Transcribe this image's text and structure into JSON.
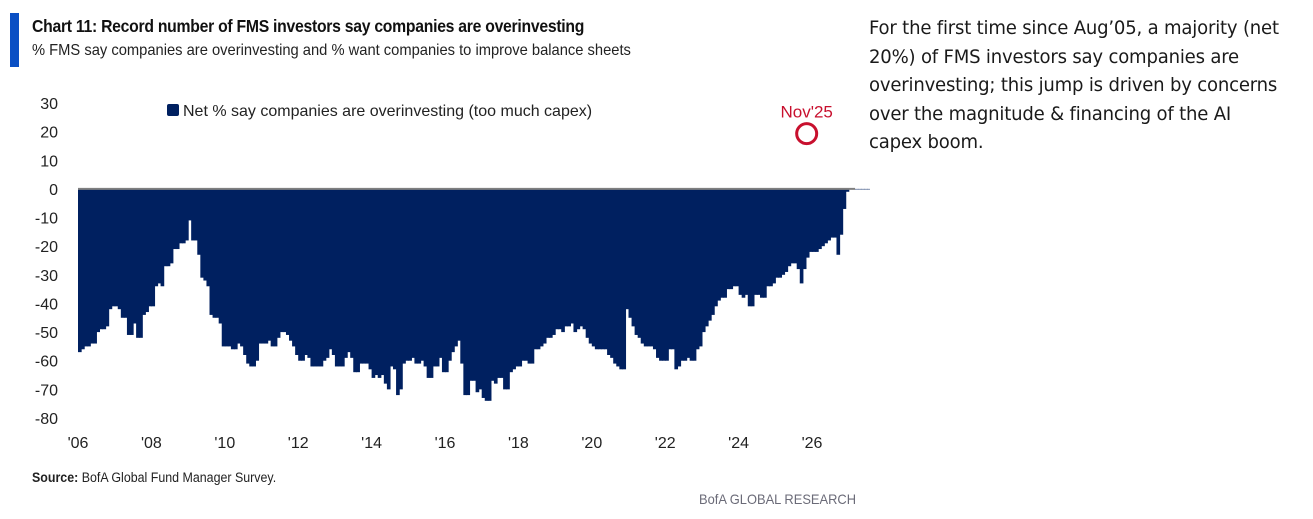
{
  "header": {
    "title": "Chart 11: Record number of FMS investors say companies are overinvesting",
    "subtitle": "% FMS say companies are overinvesting and % want companies to improve balance sheets"
  },
  "side_note": {
    "lines": [
      "For the first time since Aug’05, a majority (net",
      "20%) of FMS investors say companies are",
      "overinvesting; this jump is driven by concerns",
      "over the magnitude & financing of the AI",
      "capex boom."
    ]
  },
  "footer": {
    "source_label": "Source:",
    "source_text": "BofA Global Fund Manager Survey.",
    "brand": "BofA GLOBAL RESEARCH"
  },
  "colors": {
    "series": "#002060",
    "annotation": "#c8102e",
    "accent": "#0a4fc4",
    "zero_line": "#7f7f7f"
  },
  "chart_data": {
    "type": "bar",
    "title": "Chart 11: Record number of FMS investors say companies are overinvesting",
    "subtitle": "% FMS say companies are overinvesting and % want companies to improve balance sheets",
    "xlabel": "",
    "ylabel": "",
    "ylim": [
      -80,
      30
    ],
    "yticks": [
      30,
      20,
      10,
      0,
      -10,
      -20,
      -30,
      -40,
      -50,
      -60,
      -70,
      -80
    ],
    "ytick_labels": [
      "30",
      "20",
      "10",
      "0",
      "-10",
      "-20",
      "-30",
      "-40",
      "-50",
      "-60",
      "-70",
      "-80"
    ],
    "xlim": [
      "2006-01",
      "2026-12"
    ],
    "xtick_labels": [
      "'06",
      "'08",
      "'10",
      "'12",
      "'14",
      "'16",
      "'18",
      "'20",
      "'22",
      "'24",
      "'26"
    ],
    "xtick_years": [
      2006,
      2008,
      2010,
      2012,
      2014,
      2016,
      2018,
      2020,
      2022,
      2024,
      2026
    ],
    "grid": false,
    "legend": {
      "position": "top-center",
      "entries": [
        "Net % say companies are overinvesting (too much capex)"
      ]
    },
    "annotations": [
      {
        "text": "Nov'25",
        "x": "2025-11",
        "y": 20,
        "marker": "circle"
      }
    ],
    "series": [
      {
        "name": "Net % say companies are overinvesting (too much capex)",
        "start": "2006-01",
        "frequency": "monthly",
        "values": [
          -57,
          -56,
          -55,
          -55,
          -54,
          -54,
          -50,
          -49,
          -49,
          -48,
          -42,
          -41,
          -41,
          -42,
          -45,
          -45,
          -51,
          -51,
          -47,
          -52,
          -52,
          -44,
          -43,
          -41,
          -41,
          -34,
          -33,
          -34,
          -27,
          -27,
          -26,
          -21,
          -21,
          -19,
          -19,
          -18,
          -11,
          -18,
          -18,
          -23,
          -31,
          -32,
          -34,
          -44,
          -45,
          -45,
          -47,
          -55,
          -55,
          -55,
          -56,
          -56,
          -54,
          -55,
          -58,
          -61,
          -62,
          -62,
          -60,
          -54,
          -54,
          -54,
          -53,
          -55,
          -55,
          -52,
          -50,
          -50,
          -51,
          -53,
          -55,
          -58,
          -60,
          -60,
          -58,
          -59,
          -62,
          -62,
          -62,
          -62,
          -60,
          -59,
          -56,
          -58,
          -62,
          -62,
          -62,
          -59,
          -57,
          -59,
          -64,
          -64,
          -61,
          -61,
          -61,
          -63,
          -66,
          -65,
          -66,
          -65,
          -68,
          -70,
          -62,
          -63,
          -72,
          -70,
          -61,
          -60,
          -60,
          -59,
          -61,
          -61,
          -60,
          -62,
          -66,
          -66,
          -62,
          -62,
          -59,
          -64,
          -64,
          -60,
          -57,
          -55,
          -53,
          -61,
          -72,
          -72,
          -67,
          -67,
          -71,
          -70,
          -73,
          -74,
          -74,
          -67,
          -68,
          -66,
          -66,
          -70,
          -70,
          -64,
          -63,
          -62,
          -62,
          -60,
          -60,
          -61,
          -61,
          -56,
          -56,
          -55,
          -54,
          -52,
          -52,
          -51,
          -49,
          -49,
          -50,
          -48,
          -48,
          -47,
          -50,
          -49,
          -48,
          -49,
          -52,
          -54,
          -55,
          -56,
          -56,
          -56,
          -56,
          -58,
          -59,
          -61,
          -62,
          -63,
          -63,
          -42,
          -45,
          -48,
          -51,
          -52,
          -54,
          -55,
          -55,
          -55,
          -56,
          -59,
          -60,
          -60,
          -60,
          -56,
          -56,
          -63,
          -62,
          -60,
          -60,
          -59,
          -60,
          -60,
          -56,
          -55,
          -50,
          -48,
          -46,
          -44,
          -41,
          -39,
          -38,
          -38,
          -35,
          -35,
          -34,
          -34,
          -37,
          -38,
          -37,
          -41,
          -41,
          -37,
          -37,
          -38,
          -38,
          -34,
          -34,
          -33,
          -31,
          -31,
          -30,
          -29,
          -27,
          -26,
          -26,
          -28,
          -33,
          -28,
          -24,
          -22,
          -22,
          -22,
          -21,
          -20,
          -19,
          -18,
          -17,
          -17,
          -23,
          -16,
          -7,
          -1,
          0,
          0,
          0,
          0,
          0,
          0,
          0,
          0,
          0,
          0,
          20
        ]
      }
    ]
  }
}
